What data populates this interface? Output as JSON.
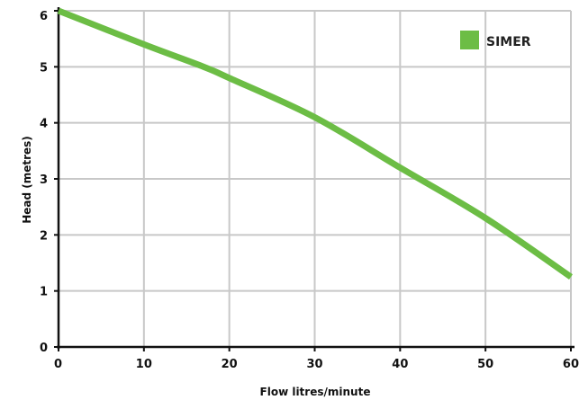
{
  "chart_data": {
    "type": "line",
    "xlabel": "Flow litres/minute",
    "ylabel": "Head (metres)",
    "xlim": [
      0,
      60
    ],
    "ylim": [
      0,
      6
    ],
    "x_ticks": [
      "0",
      "10",
      "20",
      "30",
      "40",
      "50",
      "60"
    ],
    "y_ticks": [
      "0",
      "1",
      "2",
      "3",
      "4",
      "5",
      "6"
    ],
    "grid": true,
    "legend_position": "top-right",
    "series": [
      {
        "name": "SIMER",
        "color": "#6cbd45",
        "x": [
          0,
          10,
          17,
          20,
          30,
          40,
          50,
          60
        ],
        "y": [
          6.0,
          5.4,
          5.0,
          4.8,
          4.1,
          3.2,
          2.3,
          1.25
        ]
      }
    ]
  }
}
